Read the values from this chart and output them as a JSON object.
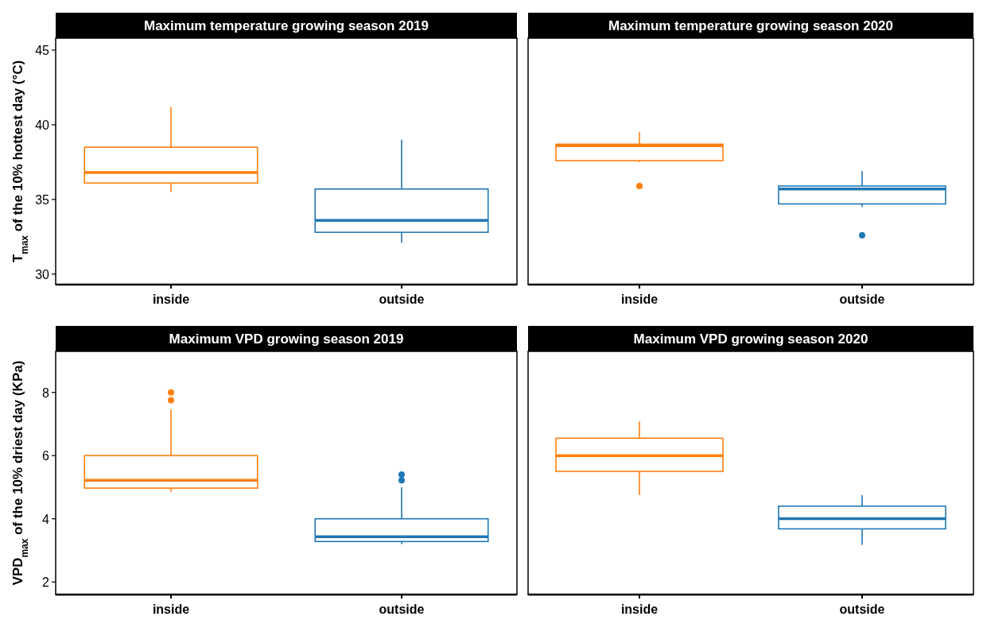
{
  "chart_data": [
    {
      "type": "box",
      "title": "Maximum temperature growing season 2019",
      "ylabel": "T$_{max}$ of the 10% hottest day (°C)",
      "categories": [
        "inside",
        "outside"
      ],
      "colors": [
        "#ff7f0e",
        "#1f77b4"
      ],
      "ylim": [
        29.3,
        45.8
      ],
      "yticks": [
        30,
        35,
        40,
        45
      ],
      "boxes": [
        {
          "low": 35.5,
          "q1": 36.1,
          "median": 36.8,
          "q3": 38.5,
          "high": 41.2
        },
        {
          "low": 32.1,
          "q1": 32.8,
          "median": 33.6,
          "q3": 35.7,
          "high": 39.0
        }
      ]
    },
    {
      "type": "box",
      "title": "Maximum temperature growing season 2020",
      "categories": [
        "inside",
        "outside"
      ],
      "colors": [
        "#ff7f0e",
        "#1f77b4"
      ],
      "ylim": [
        29.3,
        45.8
      ],
      "yticks": [
        30,
        35,
        40,
        45
      ],
      "tick_labels": "x",
      "boxes": [
        {
          "low": 37.5,
          "q1": 37.6,
          "median": 38.6,
          "q3": 38.7,
          "high": 39.5,
          "outliers": [
            35.9
          ]
        },
        {
          "low": 34.5,
          "q1": 34.7,
          "median": 35.7,
          "q3": 35.9,
          "high": 36.9,
          "outliers": [
            32.6
          ]
        }
      ]
    },
    {
      "type": "box",
      "title": "Maximum VPD growing season 2019",
      "ylabel": "VPD$_{max}$ of the 10% driest day (KPa)",
      "categories": [
        "inside",
        "outside"
      ],
      "colors": [
        "#ff7f0e",
        "#1f77b4"
      ],
      "ylim": [
        1.6,
        9.3
      ],
      "yticks": [
        2,
        4,
        6,
        8
      ],
      "boxes": [
        {
          "low": 4.85,
          "q1": 4.97,
          "median": 5.22,
          "q3": 6.0,
          "high": 7.45,
          "outliers": [
            8.0,
            7.75
          ]
        },
        {
          "low": 3.2,
          "q1": 3.28,
          "median": 3.43,
          "q3": 4.0,
          "high": 5.0,
          "outliers": [
            5.4,
            5.22
          ]
        }
      ]
    },
    {
      "type": "box",
      "title": "Maximum VPD growing season 2020",
      "categories": [
        "inside",
        "outside"
      ],
      "colors": [
        "#ff7f0e",
        "#1f77b4"
      ],
      "ylim": [
        1.6,
        9.3
      ],
      "yticks": [
        2,
        4,
        6,
        8
      ],
      "tick_labels": "x",
      "boxes": [
        {
          "low": 4.75,
          "q1": 5.5,
          "median": 6.0,
          "q3": 6.55,
          "high": 7.08
        },
        {
          "low": 3.17,
          "q1": 3.68,
          "median": 4.0,
          "q3": 4.4,
          "high": 4.75
        }
      ]
    }
  ]
}
